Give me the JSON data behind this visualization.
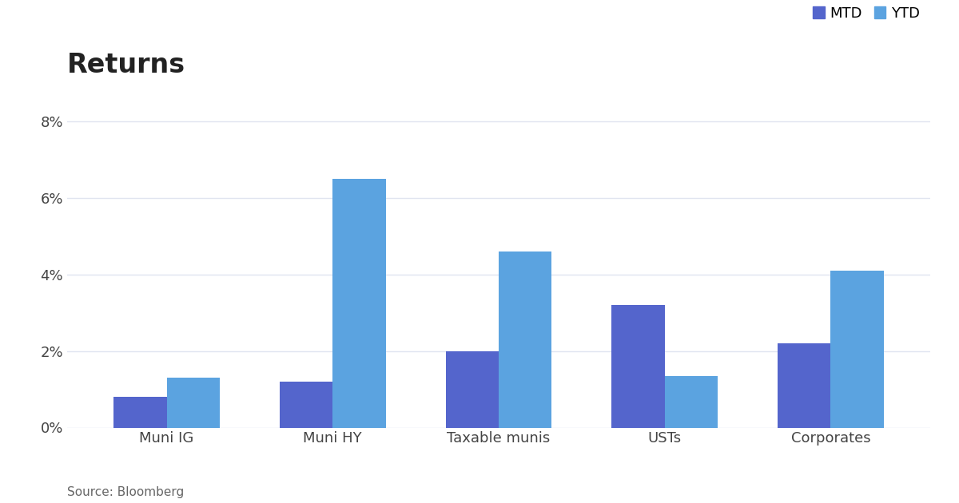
{
  "title": "Returns",
  "categories": [
    "Muni IG",
    "Muni HY",
    "Taxable munis",
    "USTs",
    "Corporates"
  ],
  "mtd_values": [
    0.008,
    0.012,
    0.02,
    0.032,
    0.022
  ],
  "ytd_values": [
    0.013,
    0.065,
    0.046,
    0.0135,
    0.041
  ],
  "mtd_color": "#5465cc",
  "ytd_color": "#5ba3e0",
  "title_fontsize": 24,
  "title_fontweight": "bold",
  "ylim": [
    0,
    0.088
  ],
  "yticks": [
    0,
    0.02,
    0.04,
    0.06,
    0.08
  ],
  "background_color": "#ffffff",
  "grid_color": "#e0e4f0",
  "source_text": "Source: Bloomberg",
  "legend_labels": [
    "MTD",
    "YTD"
  ],
  "bar_width": 0.32,
  "title_color": "#222222",
  "axis_label_color": "#444444",
  "tick_label_fontsize": 13,
  "source_fontsize": 11,
  "legend_fontsize": 13
}
